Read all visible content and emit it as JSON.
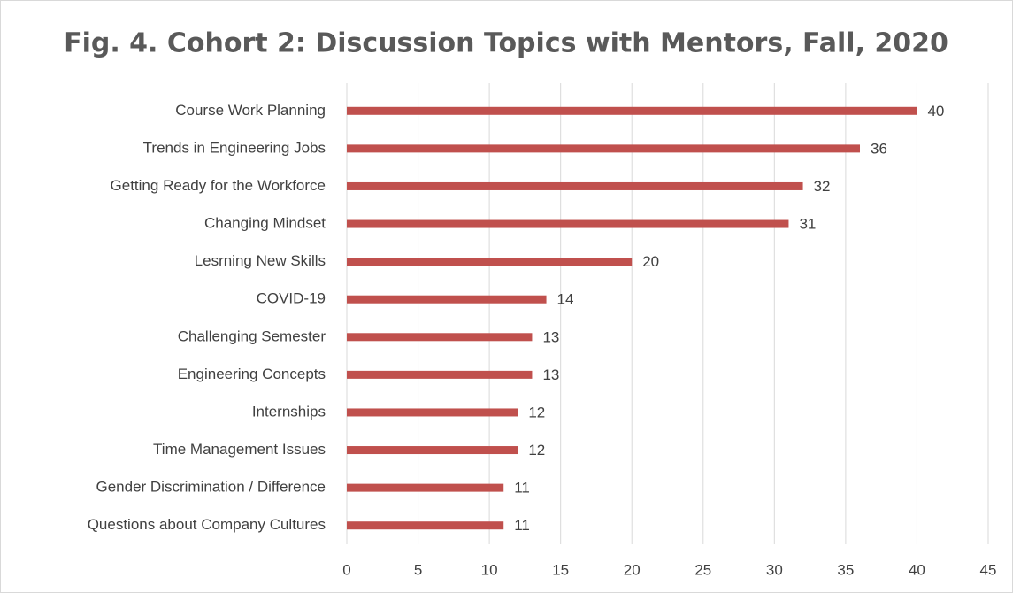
{
  "chart_data": {
    "type": "bar",
    "orientation": "horizontal",
    "title": "Fig. 4. Cohort 2: Discussion Topics with Mentors, Fall, 2020",
    "categories": [
      "Course Work Planning",
      "Trends in Engineering Jobs",
      "Getting Ready for the Workforce",
      "Changing Mindset ",
      "Lesrning New Skills",
      "COVID-19",
      "Challenging Semester",
      "Engineering Concepts",
      "Internships",
      "Time Management Issues",
      "Gender Discrimination / Difference",
      "Questions about Company Cultures"
    ],
    "values": [
      40,
      36,
      32,
      31,
      20,
      14,
      13,
      13,
      12,
      12,
      11,
      11
    ],
    "color": "#c0504d",
    "xlim": [
      0,
      45
    ],
    "xticks": [
      0,
      5,
      10,
      15,
      20,
      25,
      30,
      35,
      40,
      45
    ],
    "grid": true
  }
}
